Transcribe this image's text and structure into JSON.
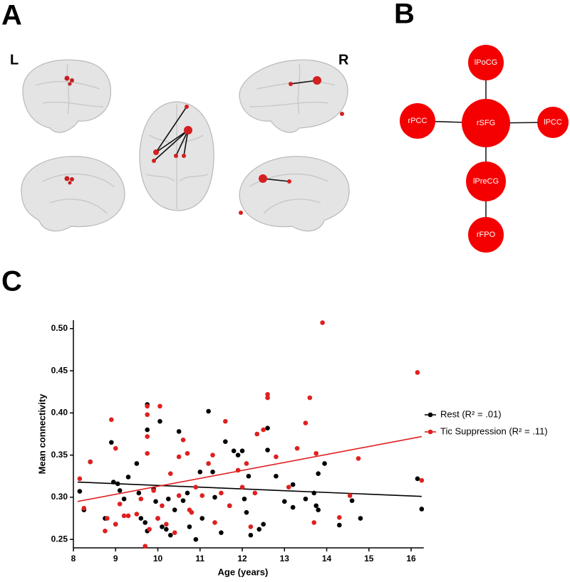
{
  "panels": {
    "a": "A",
    "b": "B",
    "c": "C"
  },
  "brain_sides": {
    "left": "L",
    "right": "R"
  },
  "network": {
    "nodes": [
      {
        "id": "rSFG",
        "label": "rSFG"
      },
      {
        "id": "lPoCG",
        "label": "lPoCG"
      },
      {
        "id": "rPCC",
        "label": "rPCC"
      },
      {
        "id": "lPCC",
        "label": "lPCC"
      },
      {
        "id": "lPreCG",
        "label": "lPreCG"
      },
      {
        "id": "rFPO",
        "label": "rFPO"
      }
    ]
  },
  "chart_data": {
    "type": "scatter",
    "xlabel": "Age (years)",
    "ylabel": "Mean connectivity",
    "xlim": [
      8,
      16.3
    ],
    "ylim": [
      0.24,
      0.51
    ],
    "xticks": [
      8,
      9,
      10,
      11,
      12,
      13,
      14,
      15,
      16
    ],
    "yticks": [
      {
        "value": 0.25,
        "label": "0.25"
      },
      {
        "value": 0.3,
        "label": "0.30"
      },
      {
        "value": 0.35,
        "label": "0.35"
      },
      {
        "value": 0.4,
        "label": "0.40"
      },
      {
        "value": 0.45,
        "label": "0.45"
      },
      {
        "value": 0.5,
        "label": "0.50"
      }
    ],
    "legend": "right",
    "series": [
      {
        "name": "Rest (R² = .01)",
        "color": "#000000",
        "x": [
          8.15,
          8.25,
          8.4,
          8.75,
          8.9,
          8.95,
          9.0,
          9.05,
          9.1,
          9.2,
          9.3,
          9.5,
          9.55,
          9.6,
          9.7,
          9.75,
          9.75,
          9.75,
          9.9,
          9.95,
          10.0,
          10.05,
          10.1,
          10.2,
          10.25,
          10.3,
          10.4,
          10.5,
          10.6,
          10.7,
          10.75,
          10.9,
          11.0,
          11.05,
          11.2,
          11.3,
          11.35,
          11.5,
          11.6,
          11.7,
          11.8,
          11.9,
          12.0,
          12.05,
          12.1,
          12.15,
          12.2,
          12.4,
          12.5,
          12.6,
          12.6,
          12.8,
          13.0,
          13.2,
          13.2,
          13.5,
          13.7,
          13.75,
          13.8,
          13.8,
          13.95,
          14.3,
          14.6,
          14.8,
          16.15,
          16.25
        ],
        "values": [
          0.307,
          0.285,
          0.342,
          0.275,
          0.365,
          0.318,
          0.268,
          0.316,
          0.308,
          0.298,
          0.324,
          0.34,
          0.305,
          0.275,
          0.27,
          0.41,
          0.38,
          0.26,
          0.31,
          0.295,
          0.275,
          0.39,
          0.265,
          0.262,
          0.298,
          0.255,
          0.285,
          0.378,
          0.296,
          0.305,
          0.265,
          0.25,
          0.33,
          0.275,
          0.402,
          0.33,
          0.3,
          0.258,
          0.366,
          0.29,
          0.355,
          0.35,
          0.355,
          0.298,
          0.282,
          0.325,
          0.255,
          0.262,
          0.268,
          0.382,
          0.356,
          0.325,
          0.295,
          0.315,
          0.288,
          0.298,
          0.305,
          0.29,
          0.285,
          0.328,
          0.34,
          0.267,
          0.296,
          0.275,
          0.322,
          0.286
        ],
        "trend": {
          "x": [
            8.1,
            16.25
          ],
          "values": [
            0.318,
            0.301
          ]
        }
      },
      {
        "name": "Tic Suppression (R² = .11)",
        "color": "#e02020",
        "x": [
          8.15,
          8.25,
          8.4,
          8.75,
          8.8,
          8.9,
          9.0,
          9.0,
          9.1,
          9.2,
          9.3,
          9.5,
          9.6,
          9.7,
          9.75,
          9.75,
          9.75,
          9.75,
          9.8,
          9.9,
          10.0,
          10.05,
          10.1,
          10.2,
          10.3,
          10.4,
          10.5,
          10.5,
          10.6,
          10.7,
          10.75,
          10.8,
          10.9,
          11.05,
          11.2,
          11.3,
          11.35,
          11.5,
          11.6,
          11.7,
          11.9,
          12.0,
          12.1,
          12.2,
          12.3,
          12.35,
          12.5,
          12.6,
          12.6,
          12.8,
          13.1,
          13.3,
          13.5,
          13.6,
          13.7,
          13.75,
          13.9,
          14.3,
          14.55,
          14.75,
          16.15,
          16.25
        ],
        "values": [
          0.322,
          0.287,
          0.342,
          0.26,
          0.275,
          0.392,
          0.358,
          0.268,
          0.292,
          0.278,
          0.278,
          0.28,
          0.298,
          0.242,
          0.408,
          0.398,
          0.372,
          0.352,
          0.262,
          0.308,
          0.275,
          0.408,
          0.29,
          0.268,
          0.328,
          0.258,
          0.302,
          0.348,
          0.368,
          0.352,
          0.285,
          0.282,
          0.312,
          0.302,
          0.34,
          0.35,
          0.27,
          0.305,
          0.39,
          0.29,
          0.332,
          0.312,
          0.34,
          0.265,
          0.305,
          0.375,
          0.38,
          0.422,
          0.418,
          0.348,
          0.312,
          0.358,
          0.388,
          0.418,
          0.27,
          0.352,
          0.507,
          0.276,
          0.302,
          0.346,
          0.448,
          0.32
        ],
        "trend": {
          "x": [
            8.1,
            16.25
          ],
          "values": [
            0.295,
            0.372
          ]
        }
      }
    ]
  }
}
